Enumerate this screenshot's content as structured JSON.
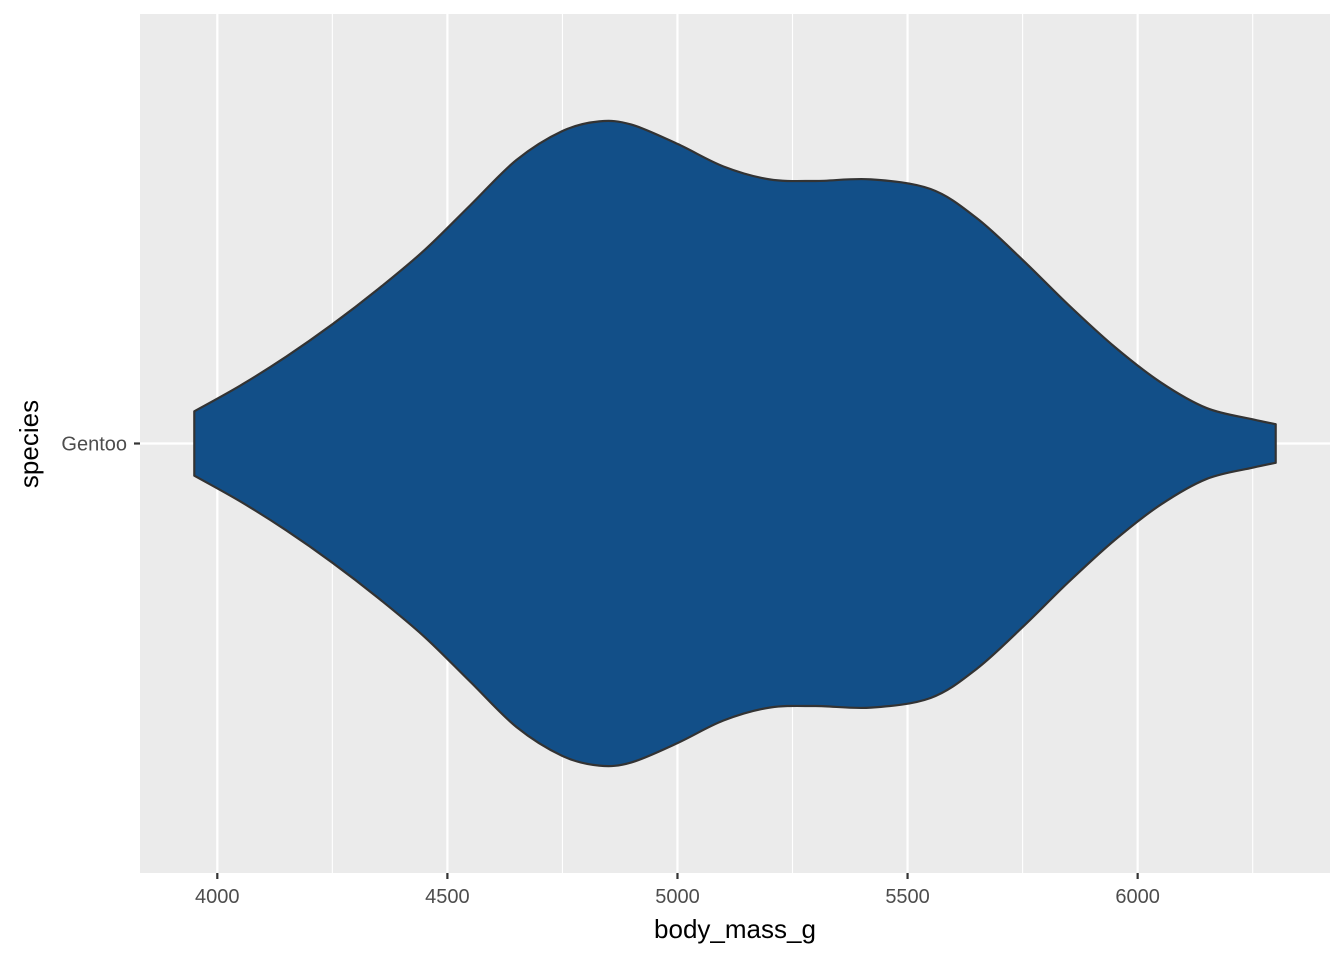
{
  "chart_data": {
    "type": "violin",
    "title": "",
    "xlabel": "body_mass_g",
    "ylabel": "species",
    "xlim": [
      3832,
      6418
    ],
    "x_ticks": [
      4000,
      4500,
      5000,
      5500,
      6000
    ],
    "x_minor_ticks": [
      4250,
      4750,
      5250,
      5750,
      6250
    ],
    "categories": [
      "Gentoo"
    ],
    "grid": true,
    "legend": "none",
    "colors": {
      "panel_background": "#EBEBEB",
      "grid": "#FFFFFF",
      "fill": "#124F88",
      "outline": "#333333"
    },
    "series": [
      {
        "category": "Gentoo",
        "min": 3950,
        "max": 6300,
        "density_profile": [
          {
            "x": 3950,
            "w": 0.1
          },
          {
            "x": 4050,
            "w": 0.18
          },
          {
            "x": 4150,
            "w": 0.27
          },
          {
            "x": 4250,
            "w": 0.37
          },
          {
            "x": 4350,
            "w": 0.48
          },
          {
            "x": 4450,
            "w": 0.6
          },
          {
            "x": 4550,
            "w": 0.74
          },
          {
            "x": 4650,
            "w": 0.88
          },
          {
            "x": 4750,
            "w": 0.97
          },
          {
            "x": 4830,
            "w": 1.0
          },
          {
            "x": 4900,
            "w": 0.99
          },
          {
            "x": 5000,
            "w": 0.93
          },
          {
            "x": 5100,
            "w": 0.86
          },
          {
            "x": 5200,
            "w": 0.82
          },
          {
            "x": 5300,
            "w": 0.815
          },
          {
            "x": 5420,
            "w": 0.82
          },
          {
            "x": 5550,
            "w": 0.79
          },
          {
            "x": 5650,
            "w": 0.7
          },
          {
            "x": 5750,
            "w": 0.57
          },
          {
            "x": 5850,
            "w": 0.43
          },
          {
            "x": 5950,
            "w": 0.3
          },
          {
            "x": 6050,
            "w": 0.19
          },
          {
            "x": 6150,
            "w": 0.11
          },
          {
            "x": 6250,
            "w": 0.075
          },
          {
            "x": 6300,
            "w": 0.06
          }
        ]
      }
    ]
  }
}
